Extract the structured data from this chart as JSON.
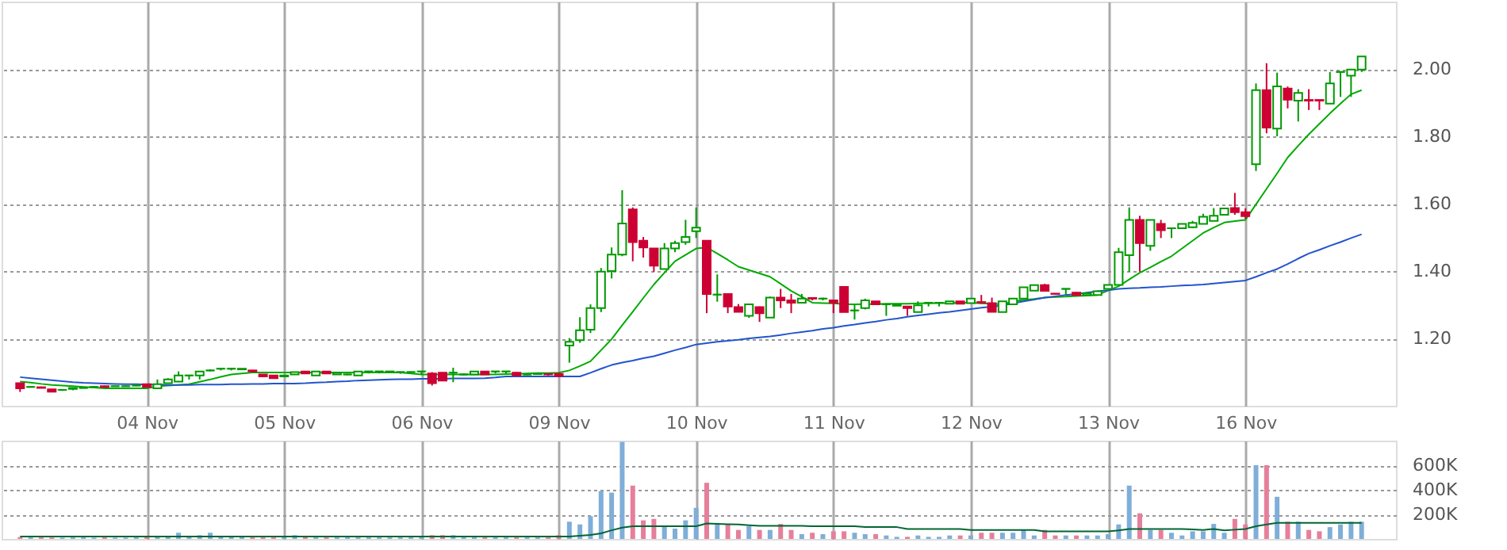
{
  "chart_data": [
    {
      "type": "candlestick",
      "categories": [
        null,
        null,
        null,
        null,
        null,
        null,
        null,
        null,
        null,
        null,
        null,
        null,
        "04 Nov",
        null,
        null,
        null,
        null,
        null,
        null,
        null,
        null,
        null,
        null,
        null,
        null,
        "05 Nov",
        null,
        null,
        null,
        null,
        null,
        null,
        null,
        null,
        null,
        null,
        null,
        null,
        "06 Nov",
        null,
        null,
        null,
        null,
        null,
        null,
        null,
        null,
        null,
        null,
        null,
        null,
        "09 Nov",
        null,
        null,
        null,
        null,
        null,
        null,
        null,
        null,
        null,
        null,
        null,
        null,
        "10 Nov",
        null,
        null,
        null,
        null,
        null,
        null,
        null,
        null,
        null,
        null,
        null,
        null,
        "11 Nov",
        null,
        null,
        null,
        null,
        null,
        null,
        null,
        null,
        null,
        null,
        null,
        null,
        "12 Nov",
        null,
        null,
        null,
        null,
        null,
        null,
        null,
        null,
        null,
        null,
        null,
        null,
        "13 Nov",
        null,
        null,
        null,
        null,
        null,
        null,
        null,
        null,
        null,
        null,
        null,
        null,
        "16 Nov",
        null,
        null,
        null,
        null,
        null,
        null,
        null,
        null,
        null,
        null,
        null
      ],
      "ohlc": [
        [
          1.067,
          1.067,
          1.041,
          1.052
        ],
        [
          1.056,
          1.058,
          1.054,
          1.056
        ],
        [
          1.055,
          1.057,
          1.052,
          1.053
        ],
        [
          1.049,
          1.049,
          1.042,
          1.042
        ],
        [
          1.047,
          1.049,
          1.044,
          1.047
        ],
        [
          1.05,
          1.054,
          1.046,
          1.053
        ],
        [
          1.053,
          1.055,
          1.052,
          1.053
        ],
        [
          1.056,
          1.058,
          1.055,
          1.056
        ],
        [
          1.058,
          1.06,
          1.055,
          1.056
        ],
        [
          1.058,
          1.059,
          1.057,
          1.058
        ],
        [
          1.058,
          1.06,
          1.057,
          1.058
        ],
        [
          1.06,
          1.062,
          1.058,
          1.06
        ],
        [
          1.064,
          1.064,
          1.056,
          1.056
        ],
        [
          1.052,
          1.078,
          1.052,
          1.064
        ],
        [
          1.067,
          1.082,
          1.067,
          1.078
        ],
        [
          1.072,
          1.102,
          1.07,
          1.09
        ],
        [
          1.09,
          1.09,
          1.078,
          1.09
        ],
        [
          1.09,
          1.102,
          1.078,
          1.102
        ],
        [
          1.105,
          1.108,
          1.102,
          1.105
        ],
        [
          1.11,
          1.11,
          1.105,
          1.11
        ],
        [
          1.11,
          1.11,
          1.105,
          1.11
        ],
        [
          1.108,
          1.11,
          1.106,
          1.11
        ],
        [
          1.105,
          1.105,
          1.1,
          1.102
        ],
        [
          1.093,
          1.093,
          1.085,
          1.087
        ],
        [
          1.09,
          1.09,
          1.082,
          1.082
        ],
        [
          1.087,
          1.09,
          1.087,
          1.09
        ],
        [
          1.093,
          1.1,
          1.093,
          1.1
        ],
        [
          1.102,
          1.102,
          1.096,
          1.096
        ],
        [
          1.09,
          1.102,
          1.09,
          1.102
        ],
        [
          1.102,
          1.102,
          1.096,
          1.096
        ],
        [
          1.093,
          1.098,
          1.093,
          1.098
        ],
        [
          1.093,
          1.095,
          1.091,
          1.093
        ],
        [
          1.09,
          1.102,
          1.09,
          1.102
        ],
        [
          1.102,
          1.102,
          1.096,
          1.102
        ],
        [
          1.102,
          1.102,
          1.096,
          1.102
        ],
        [
          1.1,
          1.102,
          1.1,
          1.102
        ],
        [
          1.1,
          1.1,
          1.095,
          1.1
        ],
        [
          1.1,
          1.102,
          1.098,
          1.1
        ],
        [
          1.102,
          1.102,
          1.093,
          1.102
        ],
        [
          1.096,
          1.1,
          1.06,
          1.067
        ],
        [
          1.098,
          1.098,
          1.075,
          1.075
        ],
        [
          1.098,
          1.113,
          1.07,
          1.098
        ],
        [
          1.093,
          1.096,
          1.09,
          1.093
        ],
        [
          1.093,
          1.102,
          1.093,
          1.102
        ],
        [
          1.102,
          1.102,
          1.093,
          1.093
        ],
        [
          1.102,
          1.102,
          1.096,
          1.102
        ],
        [
          1.102,
          1.102,
          1.096,
          1.102
        ],
        [
          1.098,
          1.1,
          1.09,
          1.09
        ],
        [
          1.093,
          1.095,
          1.091,
          1.093
        ],
        [
          1.094,
          1.096,
          1.092,
          1.095
        ],
        [
          1.094,
          1.095,
          1.09,
          1.093
        ],
        [
          1.095,
          1.097,
          1.085,
          1.088
        ],
        [
          1.179,
          1.201,
          1.128,
          1.19
        ],
        [
          1.195,
          1.263,
          1.187,
          1.224
        ],
        [
          1.226,
          1.301,
          1.216,
          1.29
        ],
        [
          1.29,
          1.409,
          1.278,
          1.398
        ],
        [
          1.4,
          1.47,
          1.378,
          1.449
        ],
        [
          1.449,
          1.64,
          1.444,
          1.541
        ],
        [
          1.583,
          1.589,
          1.429,
          1.486
        ],
        [
          1.49,
          1.501,
          1.44,
          1.47
        ],
        [
          1.467,
          1.467,
          1.398,
          1.416
        ],
        [
          1.406,
          1.483,
          1.406,
          1.467
        ],
        [
          1.467,
          1.49,
          1.456,
          1.483
        ],
        [
          1.486,
          1.552,
          1.478,
          1.501
        ],
        [
          1.518,
          1.589,
          1.498,
          1.529
        ],
        [
          1.49,
          1.49,
          1.275,
          1.332
        ],
        [
          1.33,
          1.39,
          1.309,
          1.33
        ],
        [
          1.332,
          1.332,
          1.275,
          1.295
        ],
        [
          1.293,
          1.302,
          1.279,
          1.279
        ],
        [
          1.267,
          1.301,
          1.261,
          1.301
        ],
        [
          1.293,
          1.295,
          1.249,
          1.275
        ],
        [
          1.262,
          1.324,
          1.262,
          1.321
        ],
        [
          1.321,
          1.347,
          1.29,
          1.313
        ],
        [
          1.313,
          1.332,
          1.275,
          1.306
        ],
        [
          1.306,
          1.332,
          1.306,
          1.318
        ],
        [
          1.32,
          1.321,
          1.313,
          1.318
        ],
        [
          1.318,
          1.321,
          1.313,
          1.318
        ],
        [
          1.313,
          1.313,
          1.275,
          1.306
        ],
        [
          1.353,
          1.353,
          1.278,
          1.278
        ],
        [
          1.283,
          1.301,
          1.256,
          1.283
        ],
        [
          1.29,
          1.318,
          1.286,
          1.313
        ],
        [
          1.31,
          1.31,
          1.301,
          1.301
        ],
        [
          1.301,
          1.301,
          1.267,
          1.301
        ],
        [
          1.297,
          1.301,
          1.297,
          1.301
        ],
        [
          1.295,
          1.295,
          1.267,
          1.29
        ],
        [
          1.278,
          1.31,
          1.278,
          1.298
        ],
        [
          1.306,
          1.306,
          1.295,
          1.306
        ],
        [
          1.306,
          1.306,
          1.295,
          1.306
        ],
        [
          1.303,
          1.31,
          1.303,
          1.31
        ],
        [
          1.31,
          1.31,
          1.303,
          1.303
        ],
        [
          1.305,
          1.318,
          1.305,
          1.318
        ],
        [
          1.308,
          1.329,
          1.303,
          1.306
        ],
        [
          1.305,
          1.321,
          1.279,
          1.279
        ],
        [
          1.278,
          1.31,
          1.278,
          1.31
        ],
        [
          1.301,
          1.318,
          1.301,
          1.318
        ],
        [
          1.318,
          1.352,
          1.318,
          1.352
        ],
        [
          1.342,
          1.36,
          1.342,
          1.358
        ],
        [
          1.358,
          1.362,
          1.341,
          1.341
        ],
        [
          1.333,
          1.334,
          1.33,
          1.332
        ],
        [
          1.347,
          1.347,
          1.329,
          1.347
        ],
        [
          1.336,
          1.338,
          1.329,
          1.329
        ],
        [
          1.329,
          1.334,
          1.329,
          1.334
        ],
        [
          1.329,
          1.34,
          1.329,
          1.34
        ],
        [
          1.347,
          1.359,
          1.347,
          1.359
        ],
        [
          1.359,
          1.469,
          1.359,
          1.456
        ],
        [
          1.447,
          1.589,
          1.398,
          1.552
        ],
        [
          1.552,
          1.564,
          1.398,
          1.483
        ],
        [
          1.475,
          1.552,
          1.46,
          1.552
        ],
        [
          1.54,
          1.552,
          1.498,
          1.521
        ],
        [
          1.527,
          1.527,
          1.498,
          1.527
        ],
        [
          1.527,
          1.54,
          1.527,
          1.54
        ],
        [
          1.53,
          1.549,
          1.527,
          1.543
        ],
        [
          1.54,
          1.57,
          1.54,
          1.561
        ],
        [
          1.549,
          1.587,
          1.549,
          1.564
        ],
        [
          1.567,
          1.586,
          1.567,
          1.586
        ],
        [
          1.587,
          1.632,
          1.567,
          1.575
        ],
        [
          1.575,
          1.586,
          1.555,
          1.563
        ],
        [
          1.717,
          1.957,
          1.697,
          1.937
        ],
        [
          1.937,
          2.017,
          1.809,
          1.826
        ],
        [
          1.823,
          1.989,
          1.8,
          1.948
        ],
        [
          1.942,
          1.948,
          1.883,
          1.909
        ],
        [
          1.906,
          1.94,
          1.844,
          1.929
        ],
        [
          1.908,
          1.94,
          1.878,
          1.906
        ],
        [
          1.908,
          1.908,
          1.878,
          1.906
        ],
        [
          1.897,
          1.991,
          1.897,
          1.957
        ],
        [
          1.991,
          1.991,
          1.917,
          1.991
        ],
        [
          1.98,
          1.998,
          1.917,
          1.998
        ],
        [
          1.998,
          2.037,
          1.991,
          2.037
        ]
      ],
      "colors": [
        "#cc0033",
        "#009900",
        "#cc0033",
        "#cc0033",
        "#009900",
        "#009900",
        "#009900",
        "#009900",
        "#cc0033",
        "#009900",
        "#009900",
        "#009900",
        "#cc0033",
        "#009900",
        "#009900",
        "#009900",
        "#009900",
        "#009900",
        "#009900",
        "#009900",
        "#009900",
        "#009900",
        "#cc0033",
        "#cc0033",
        "#cc0033",
        "#009900",
        "#009900",
        "#cc0033",
        "#009900",
        "#cc0033",
        "#009900",
        "#009900",
        "#009900",
        "#009900",
        "#009900",
        "#009900",
        "#009900",
        "#009900",
        "#009900",
        "#cc0033",
        "#cc0033",
        "#009900",
        "#009900",
        "#009900",
        "#cc0033",
        "#009900",
        "#009900",
        "#cc0033",
        "#009900",
        "#009900",
        "#cc0033",
        "#cc0033",
        "#009900",
        "#009900",
        "#009900",
        "#009900",
        "#009900",
        "#009900",
        "#cc0033",
        "#cc0033",
        "#cc0033",
        "#009900",
        "#009900",
        "#009900",
        "#009900",
        "#cc0033",
        "#009900",
        "#cc0033",
        "#cc0033",
        "#009900",
        "#cc0033",
        "#009900",
        "#cc0033",
        "#cc0033",
        "#009900",
        "#cc0033",
        "#009900",
        "#cc0033",
        "#cc0033",
        "#009900",
        "#009900",
        "#cc0033",
        "#009900",
        "#009900",
        "#cc0033",
        "#009900",
        "#009900",
        "#009900",
        "#009900",
        "#cc0033",
        "#009900",
        "#cc0033",
        "#cc0033",
        "#009900",
        "#009900",
        "#009900",
        "#009900",
        "#cc0033",
        "#cc0033",
        "#009900",
        "#cc0033",
        "#009900",
        "#009900",
        "#009900",
        "#009900",
        "#009900",
        "#cc0033",
        "#009900",
        "#cc0033",
        "#009900",
        "#009900",
        "#009900",
        "#009900",
        "#009900",
        "#009900",
        "#cc0033",
        "#cc0033",
        "#009900",
        "#cc0033",
        "#009900",
        "#cc0033",
        "#009900",
        "#cc0033",
        "#cc0033",
        "#009900",
        "#009900",
        "#009900",
        "#009900"
      ],
      "series": [
        {
          "type": "line",
          "color": "#00aa00",
          "values": [
            1.072,
            1.069,
            1.065,
            1.062,
            1.06,
            1.058,
            1.056,
            1.054,
            1.052,
            1.052,
            1.052,
            1.052,
            1.052,
            1.058,
            1.06,
            1.062,
            1.064,
            1.071,
            1.078,
            1.086,
            1.093,
            1.096,
            1.099,
            1.099,
            1.099,
            1.099,
            1.099,
            1.099,
            1.099,
            1.099,
            1.099,
            1.099,
            1.099,
            1.099,
            1.099,
            1.099,
            1.099,
            1.096,
            1.093,
            1.093,
            1.093,
            1.093,
            1.093,
            1.093,
            1.093,
            1.093,
            1.094,
            1.095,
            1.096,
            1.097,
            1.097,
            1.098,
            1.105,
            1.118,
            1.132,
            1.165,
            1.198,
            1.239,
            1.279,
            1.32,
            1.36,
            1.395,
            1.429,
            1.448,
            1.467,
            1.47,
            1.452,
            1.433,
            1.413,
            1.403,
            1.393,
            1.383,
            1.362,
            1.341,
            1.324,
            1.306,
            1.305,
            1.304,
            1.302,
            1.301,
            1.302,
            1.302,
            1.303,
            1.303,
            1.303,
            1.304,
            1.304,
            1.305,
            1.305,
            1.306,
            1.306,
            1.304,
            1.303,
            1.301,
            1.31,
            1.314,
            1.317,
            1.321,
            1.323,
            1.324,
            1.326,
            1.327,
            1.329,
            1.342,
            1.355,
            1.375,
            1.395,
            1.411,
            1.428,
            1.444,
            1.467,
            1.49,
            1.513,
            1.529,
            1.544,
            1.548,
            1.552,
            1.598,
            1.644,
            1.69,
            1.737,
            1.772,
            1.806,
            1.837,
            1.868,
            1.897,
            1.925,
            1.937
          ]
        },
        {
          "type": "line",
          "color": "#2255cc",
          "values": [
            1.085,
            1.082,
            1.079,
            1.076,
            1.073,
            1.07,
            1.068,
            1.067,
            1.066,
            1.065,
            1.064,
            1.064,
            1.063,
            1.063,
            1.062,
            1.062,
            1.062,
            1.063,
            1.063,
            1.063,
            1.064,
            1.064,
            1.065,
            1.065,
            1.066,
            1.066,
            1.066,
            1.067,
            1.069,
            1.07,
            1.072,
            1.073,
            1.075,
            1.076,
            1.077,
            1.078,
            1.079,
            1.079,
            1.08,
            1.08,
            1.08,
            1.081,
            1.081,
            1.081,
            1.082,
            1.084,
            1.087,
            1.087,
            1.087,
            1.087,
            1.087,
            1.087,
            1.087,
            1.087,
            1.098,
            1.11,
            1.121,
            1.128,
            1.134,
            1.141,
            1.147,
            1.156,
            1.165,
            1.173,
            1.182,
            1.186,
            1.19,
            1.193,
            1.196,
            1.2,
            1.203,
            1.206,
            1.21,
            1.215,
            1.219,
            1.223,
            1.228,
            1.232,
            1.237,
            1.241,
            1.246,
            1.25,
            1.255,
            1.259,
            1.264,
            1.268,
            1.272,
            1.276,
            1.279,
            1.283,
            1.287,
            1.291,
            1.294,
            1.298,
            1.304,
            1.31,
            1.315,
            1.321,
            1.325,
            1.329,
            1.332,
            1.336,
            1.34,
            1.343,
            1.347,
            1.349,
            1.35,
            1.352,
            1.353,
            1.355,
            1.357,
            1.358,
            1.36,
            1.363,
            1.366,
            1.369,
            1.372,
            1.383,
            1.395,
            1.406,
            1.421,
            1.437,
            1.452,
            1.463,
            1.475,
            1.486,
            1.498,
            1.509
          ]
        }
      ],
      "ylim": [
        1.0,
        2.2
      ],
      "yticks": [
        {
          "value": 1.2,
          "label": "1.20"
        },
        {
          "value": 1.4,
          "label": "1.40"
        },
        {
          "value": 1.6,
          "label": "1.60"
        },
        {
          "value": 1.8,
          "label": "1.80"
        },
        {
          "value": 2.0,
          "label": "2.00"
        }
      ],
      "grid": true
    },
    {
      "type": "bar",
      "categories": [
        null,
        null,
        null,
        null,
        null,
        null,
        null,
        null,
        null,
        null,
        null,
        null,
        null,
        null,
        null,
        null,
        null,
        null,
        null,
        null,
        null,
        null,
        null,
        null,
        null,
        null,
        null,
        null,
        null,
        null,
        null,
        null,
        null,
        null,
        null,
        null,
        null,
        null,
        null,
        null,
        null,
        null,
        null,
        null,
        null,
        null,
        null,
        null,
        null,
        null,
        null,
        null,
        null,
        null,
        null,
        null,
        null,
        null,
        null,
        null,
        null,
        null,
        null,
        null,
        null,
        null,
        null,
        null,
        null,
        null,
        null,
        null,
        null,
        null,
        null,
        null,
        null,
        null,
        null,
        null,
        null,
        null,
        null,
        null,
        null,
        null,
        null,
        null,
        null,
        null,
        null,
        null,
        null,
        null,
        null,
        null,
        null,
        null,
        null,
        null,
        null,
        null,
        null,
        null,
        null,
        null,
        null,
        null,
        null,
        null,
        null,
        null,
        null,
        null,
        null,
        null,
        null,
        null,
        null,
        null,
        null,
        null,
        null,
        null,
        null,
        null,
        null,
        null
      ],
      "series": [
        {
          "type": "bar",
          "values": [
            15000,
            12000,
            12000,
            12000,
            10000,
            12000,
            12000,
            10000,
            12000,
            10000,
            10000,
            12000,
            15000,
            20000,
            15000,
            50000,
            15000,
            30000,
            50000,
            15000,
            15000,
            15000,
            12000,
            12000,
            12000,
            15000,
            30000,
            15000,
            12000,
            12000,
            12000,
            12000,
            12000,
            12000,
            12000,
            12000,
            12000,
            12000,
            15000,
            30000,
            30000,
            30000,
            12000,
            12000,
            12000,
            12000,
            12000,
            12000,
            12000,
            12000,
            12000,
            30000,
            140000,
            118000,
            185000,
            389000,
            377000,
            790000,
            434000,
            151000,
            163000,
            103000,
            84000,
            151000,
            253000,
            457000,
            118000,
            118000,
            73000,
            103000,
            73000,
            73000,
            122000,
            73000,
            39000,
            50000,
            39000,
            62000,
            62000,
            50000,
            39000,
            39000,
            28000,
            17000,
            17000,
            28000,
            17000,
            17000,
            28000,
            28000,
            28000,
            50000,
            50000,
            50000,
            50000,
            73000,
            28000,
            73000,
            28000,
            28000,
            28000,
            28000,
            28000,
            39000,
            118000,
            434000,
            208000,
            73000,
            73000,
            50000,
            28000,
            62000,
            62000,
            122000,
            50000,
            163000,
            118000,
            600000,
            600000,
            343000,
            140000,
            140000,
            73000,
            62000,
            96000,
            118000,
            140000,
            140000
          ],
          "colors": [
            "#e67f9b",
            "#7faed8",
            "#e67f9b",
            "#e67f9b",
            "#7faed8",
            "#7faed8",
            "#7faed8",
            "#7faed8",
            "#e67f9b",
            "#7faed8",
            "#7faed8",
            "#7faed8",
            "#e67f9b",
            "#7faed8",
            "#7faed8",
            "#7faed8",
            "#7faed8",
            "#7faed8",
            "#7faed8",
            "#7faed8",
            "#7faed8",
            "#7faed8",
            "#e67f9b",
            "#e67f9b",
            "#e67f9b",
            "#7faed8",
            "#7faed8",
            "#e67f9b",
            "#7faed8",
            "#e67f9b",
            "#7faed8",
            "#7faed8",
            "#7faed8",
            "#7faed8",
            "#7faed8",
            "#7faed8",
            "#7faed8",
            "#7faed8",
            "#7faed8",
            "#e67f9b",
            "#e67f9b",
            "#7faed8",
            "#7faed8",
            "#7faed8",
            "#e67f9b",
            "#7faed8",
            "#7faed8",
            "#e67f9b",
            "#7faed8",
            "#7faed8",
            "#e67f9b",
            "#e67f9b",
            "#7faed8",
            "#7faed8",
            "#7faed8",
            "#7faed8",
            "#7faed8",
            "#7faed8",
            "#e67f9b",
            "#e67f9b",
            "#e67f9b",
            "#7faed8",
            "#7faed8",
            "#7faed8",
            "#7faed8",
            "#e67f9b",
            "#7faed8",
            "#e67f9b",
            "#e67f9b",
            "#7faed8",
            "#e67f9b",
            "#7faed8",
            "#e67f9b",
            "#e67f9b",
            "#7faed8",
            "#e67f9b",
            "#7faed8",
            "#e67f9b",
            "#e67f9b",
            "#7faed8",
            "#7faed8",
            "#e67f9b",
            "#7faed8",
            "#7faed8",
            "#e67f9b",
            "#7faed8",
            "#7faed8",
            "#7faed8",
            "#7faed8",
            "#e67f9b",
            "#7faed8",
            "#e67f9b",
            "#e67f9b",
            "#7faed8",
            "#7faed8",
            "#7faed8",
            "#7faed8",
            "#e67f9b",
            "#e67f9b",
            "#7faed8",
            "#e67f9b",
            "#7faed8",
            "#7faed8",
            "#7faed8",
            "#7faed8",
            "#7faed8",
            "#e67f9b",
            "#7faed8",
            "#e67f9b",
            "#7faed8",
            "#7faed8",
            "#7faed8",
            "#7faed8",
            "#7faed8",
            "#7faed8",
            "#e67f9b",
            "#e67f9b",
            "#7faed8",
            "#e67f9b",
            "#7faed8",
            "#e67f9b",
            "#7faed8",
            "#e67f9b",
            "#e67f9b",
            "#7faed8",
            "#7faed8",
            "#7faed8",
            "#7faed8"
          ]
        },
        {
          "type": "line",
          "color": "#006633",
          "values": [
            19000,
            19000,
            19000,
            19000,
            19000,
            19000,
            19000,
            19000,
            19000,
            19000,
            19000,
            19000,
            19000,
            19000,
            19000,
            19000,
            19000,
            19000,
            19000,
            19000,
            19000,
            19000,
            19000,
            19000,
            19000,
            19000,
            19000,
            19000,
            19000,
            19000,
            19000,
            19000,
            19000,
            19000,
            19000,
            19000,
            19000,
            19000,
            19000,
            19000,
            19000,
            19000,
            19000,
            19000,
            19000,
            19000,
            19000,
            19000,
            19000,
            19000,
            19000,
            19000,
            19000,
            26000,
            33000,
            45000,
            70000,
            92000,
            103000,
            103000,
            103000,
            103000,
            103000,
            103000,
            103000,
            126000,
            123000,
            120000,
            118000,
            112000,
            107000,
            107000,
            107000,
            107000,
            107000,
            103000,
            103000,
            103000,
            103000,
            103000,
            96000,
            96000,
            96000,
            96000,
            81000,
            81000,
            81000,
            81000,
            81000,
            81000,
            73000,
            73000,
            73000,
            73000,
            73000,
            73000,
            73000,
            62000,
            62000,
            62000,
            62000,
            62000,
            62000,
            62000,
            70000,
            81000,
            81000,
            81000,
            81000,
            81000,
            81000,
            77000,
            73000,
            81000,
            70000,
            75000,
            81000,
            103000,
            118000,
            130000,
            130000,
            130000,
            130000,
            130000,
            130000,
            130000,
            130000,
            130000
          ]
        }
      ],
      "ylim": [
        0,
        800000
      ],
      "yticks": [
        {
          "value": 200000,
          "label": "200K"
        },
        {
          "value": 400000,
          "label": "400K"
        },
        {
          "value": 600000,
          "label": "600K"
        }
      ],
      "tick_labels": "y",
      "grid": true
    }
  ]
}
